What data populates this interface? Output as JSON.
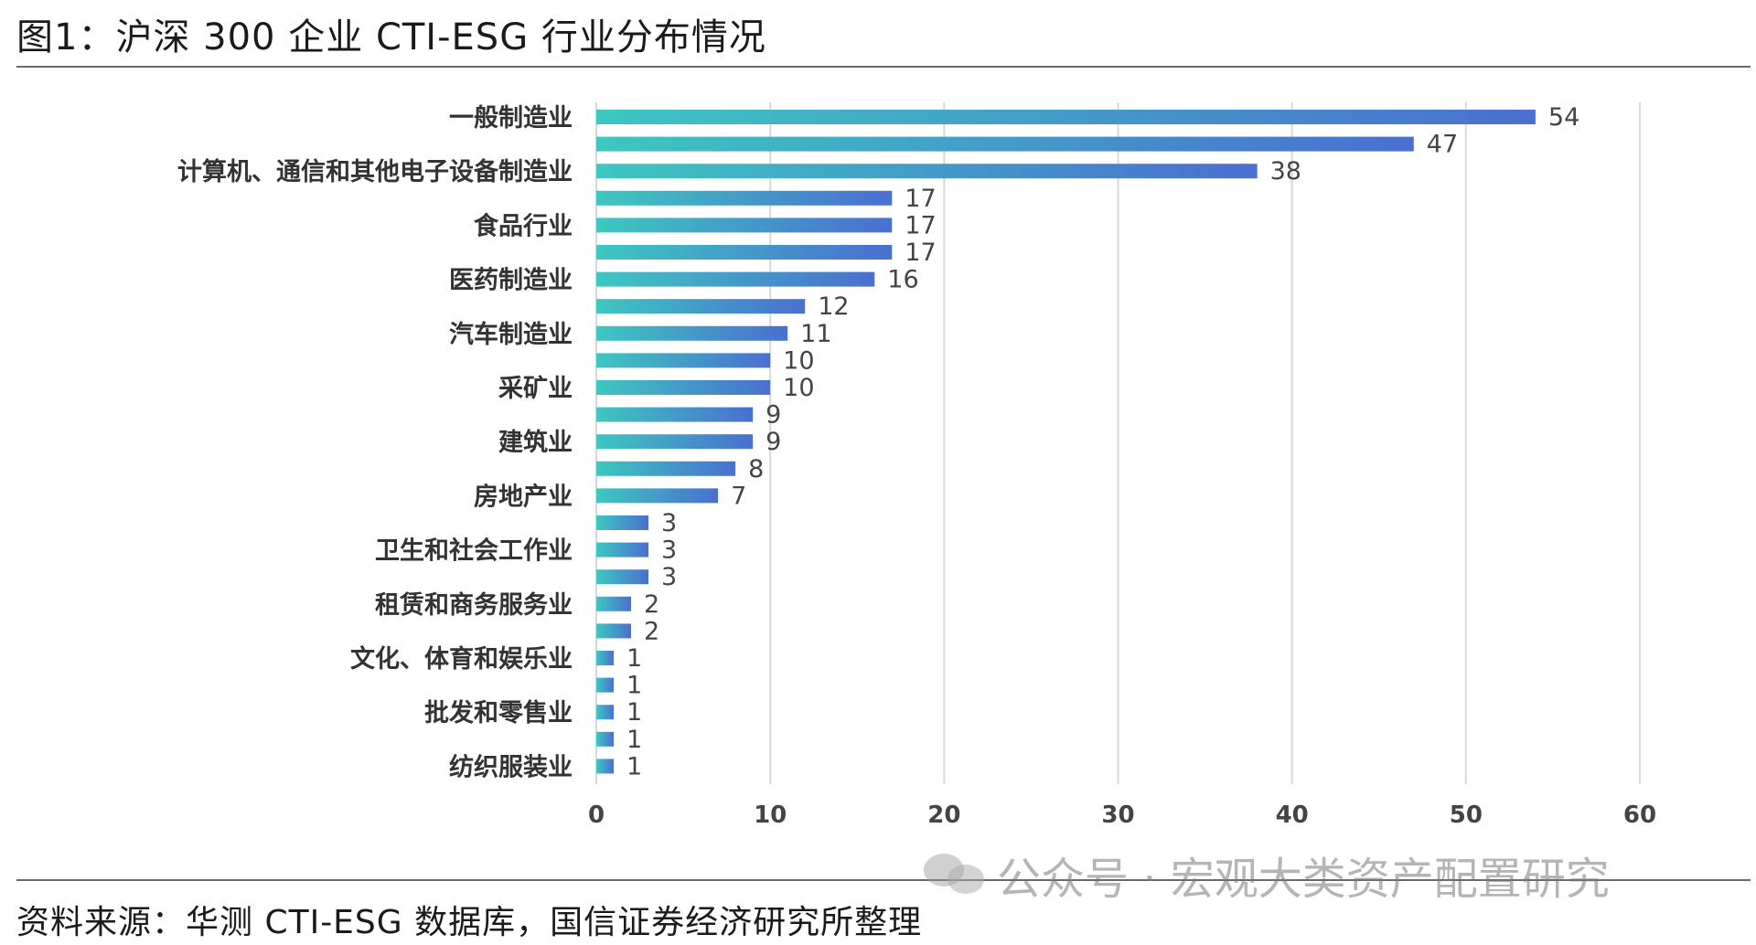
{
  "figure": {
    "title": "图1：沪深 300 企业 CTI-ESG 行业分布情况",
    "source": "资料来源：华测 CTI-ESG 数据库，国信证券经济研究所整理",
    "watermark": "公众号 · 宏观大类资产配置研究"
  },
  "chart_data": {
    "type": "bar",
    "orientation": "horizontal",
    "title": "",
    "xlabel": "",
    "ylabel": "",
    "xlim": [
      0,
      60
    ],
    "xticks": [
      0,
      10,
      20,
      30,
      40,
      50,
      60
    ],
    "grid": "vertical",
    "categories": [
      "一般制造业",
      "",
      "计算机、通信和其他电子设备制造业",
      "",
      "食品行业",
      "",
      "医药制造业",
      "",
      "汽车制造业",
      "",
      "采矿业",
      "",
      "建筑业",
      "",
      "房地产业",
      "",
      "卫生和社会工作业",
      "",
      "租赁和商务服务业",
      "",
      "文化、体育和娱乐业",
      "",
      "批发和零售业",
      "",
      "纺织服装业"
    ],
    "values": [
      54,
      47,
      38,
      17,
      17,
      17,
      16,
      12,
      11,
      10,
      10,
      9,
      9,
      8,
      7,
      3,
      3,
      3,
      2,
      2,
      1,
      1,
      1,
      1,
      1
    ],
    "colors": {
      "bar_start": "#3ec7c0",
      "bar_end": "#4a6fd0",
      "grid": "#d9d9d9",
      "label": "#444444",
      "tick": "#444444"
    }
  }
}
